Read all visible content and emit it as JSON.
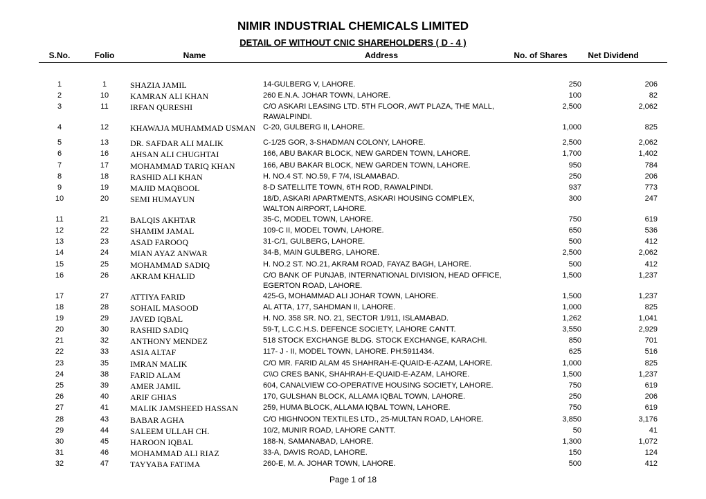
{
  "title": "NIMIR INDUSTRIAL CHEMICALS LIMITED",
  "subtitle": "DETAIL OF WITHOUT CNIC SHAREHOLDERS  ( D - 4 )",
  "columns": {
    "sno": "S.No.",
    "folio": "Folio",
    "name": "Name",
    "address": "Address",
    "shares": "No. of Shares",
    "dividend": "Net Dividend"
  },
  "footer": "Page 1 of 18",
  "rows": [
    {
      "sno": "1",
      "folio": "1",
      "name": "SHAZIA JAMIL",
      "address": "14-GULBERG V, LAHORE.",
      "shares": "250",
      "dividend": "206"
    },
    {
      "sno": "2",
      "folio": "10",
      "name": "KAMRAN ALI KHAN",
      "address": "260 E.N.A. JOHAR TOWN, LAHORE.",
      "shares": "100",
      "dividend": "82"
    },
    {
      "sno": "3",
      "folio": "11",
      "name": "IRFAN QURESHI",
      "address": "C/O ASKARI LEASING LTD. 5TH FLOOR, AWT PLAZA, THE MALL, RAWALPINDI.",
      "shares": "2,500",
      "dividend": "2,062"
    },
    {
      "sno": "4",
      "folio": "12",
      "name": "KHAWAJA MUHAMMAD USMAN",
      "address": "C-20, GULBERG II, LAHORE.",
      "shares": "1,000",
      "dividend": "825",
      "gap_after": true
    },
    {
      "sno": "5",
      "folio": "13",
      "name": "DR. SAFDAR ALI MALIK",
      "address": "C-1/25 GOR, 3-SHADMAN COLONY, LAHORE.",
      "shares": "2,500",
      "dividend": "2,062"
    },
    {
      "sno": "6",
      "folio": "16",
      "name": "AHSAN ALI CHUGHTAI",
      "address": "166, ABU BAKAR BLOCK, NEW GARDEN TOWN, LAHORE.",
      "shares": "1,700",
      "dividend": "1,402"
    },
    {
      "sno": "7",
      "folio": "17",
      "name": "MOHAMMAD TARIQ KHAN",
      "address": "166, ABU BAKAR BLOCK, NEW GARDEN TOWN, LAHORE.",
      "shares": "950",
      "dividend": "784"
    },
    {
      "sno": "8",
      "folio": "18",
      "name": "RASHID ALI KHAN",
      "address": "H. NO.4 ST. NO.59, F 7/4, ISLAMABAD.",
      "shares": "250",
      "dividend": "206"
    },
    {
      "sno": "9",
      "folio": "19",
      "name": "MAJID MAQBOOL",
      "address": "8-D SATELLITE TOWN, 6TH ROD, RAWALPINDI.",
      "shares": "937",
      "dividend": "773"
    },
    {
      "sno": "10",
      "folio": "20",
      "name": "SEMI HUMAYUN",
      "address": "18/D, ASKARI APARTMENTS, ASKARI HOUSING COMPLEX, WALTON AIRPORT, LAHORE.",
      "shares": "300",
      "dividend": "247"
    },
    {
      "sno": "11",
      "folio": "21",
      "name": "BALQIS AKHTAR",
      "address": "35-C, MODEL TOWN, LAHORE.",
      "shares": "750",
      "dividend": "619"
    },
    {
      "sno": "12",
      "folio": "22",
      "name": "SHAMIM JAMAL",
      "address": "109-C II, MODEL TOWN, LAHORE.",
      "shares": "650",
      "dividend": "536"
    },
    {
      "sno": "13",
      "folio": "23",
      "name": "ASAD FAROOQ",
      "address": "31-C/1, GULBERG, LAHORE.",
      "shares": "500",
      "dividend": "412"
    },
    {
      "sno": "14",
      "folio": "24",
      "name": "MIAN AYAZ ANWAR",
      "address": "34-B, MAIN GULBERG, LAHORE.",
      "shares": "2,500",
      "dividend": "2,062"
    },
    {
      "sno": "15",
      "folio": "25",
      "name": "MOHAMMAD SADIQ",
      "address": "H. NO.2 ST. NO.21, AKRAM ROAD, FAYAZ BAGH, LAHORE.",
      "shares": "500",
      "dividend": "412"
    },
    {
      "sno": "16",
      "folio": "26",
      "name": "AKRAM KHALID",
      "address": "C/O BANK OF PUNJAB, INTERNATIONAL DIVISION, HEAD OFFICE, EGERTON ROAD, LAHORE.",
      "shares": "1,500",
      "dividend": "1,237"
    },
    {
      "sno": "17",
      "folio": "27",
      "name": "ATTIYA FARID",
      "address": "425-G, MOHAMMAD ALI JOHAR TOWN, LAHORE.",
      "shares": "1,500",
      "dividend": "1,237"
    },
    {
      "sno": "18",
      "folio": "28",
      "name": "SOHAIL MASOOD",
      "address": "AL ATTA, 177, SAHDMAN II, LAHORE.",
      "shares": "1,000",
      "dividend": "825"
    },
    {
      "sno": "19",
      "folio": "29",
      "name": "JAVED IQBAL",
      "address": "H. NO. 358 SR. NO. 21, SECTOR 1/911, ISLAMABAD.",
      "shares": "1,262",
      "dividend": "1,041"
    },
    {
      "sno": "20",
      "folio": "30",
      "name": "RASHID SADIQ",
      "address": "59-T, L.C.C.H.S. DEFENCE SOCIETY, LAHORE CANTT.",
      "shares": "3,550",
      "dividend": "2,929"
    },
    {
      "sno": "21",
      "folio": "32",
      "name": "ANTHONY MENDEZ",
      "address": "518 STOCK EXCHANGE BLDG. STOCK EXCHANGE, KARACHI.",
      "shares": "850",
      "dividend": "701"
    },
    {
      "sno": "22",
      "folio": "33",
      "name": "ASIA ALTAF",
      "address": "117- J - II, MODEL TOWN, LAHORE. PH:5911434.",
      "shares": "625",
      "dividend": "516"
    },
    {
      "sno": "23",
      "folio": "35",
      "name": "IMRAN MALIK",
      "address": "C/O MR. FARID ALAM 45 SHAHRAH-E-QUAID-E-AZAM, LAHORE.",
      "shares": "1,000",
      "dividend": "825"
    },
    {
      "sno": "24",
      "folio": "38",
      "name": "FARID ALAM",
      "address": "C\\\\O CRES BANK, SHAHRAH-E-QUAID-E-AZAM, LAHORE.",
      "shares": "1,500",
      "dividend": "1,237"
    },
    {
      "sno": "25",
      "folio": "39",
      "name": "AMER JAMIL",
      "address": "604, CANALVIEW CO-OPERATIVE HOUSING SOCIETY, LAHORE.",
      "shares": "750",
      "dividend": "619"
    },
    {
      "sno": "26",
      "folio": "40",
      "name": "ARIF GHIAS",
      "address": "170, GULSHAN BLOCK, ALLAMA IQBAL TOWN, LAHORE.",
      "shares": "250",
      "dividend": "206"
    },
    {
      "sno": "27",
      "folio": "41",
      "name": "MALIK JAMSHEED HASSAN",
      "address": "259, HUMA BLOCK, ALLAMA IQBAL TOWN, LAHORE.",
      "shares": "750",
      "dividend": "619"
    },
    {
      "sno": "28",
      "folio": "43",
      "name": "BABAR AGHA",
      "address": "C/O HIGHNOON TEXTILES LTD., 25-MULTAN ROAD, LAHORE.",
      "shares": "3,850",
      "dividend": "3,176"
    },
    {
      "sno": "29",
      "folio": "44",
      "name": "SALEEM ULLAH CH.",
      "address": "10/2, MUNIR ROAD, LAHORE CANTT.",
      "shares": "50",
      "dividend": "41"
    },
    {
      "sno": "30",
      "folio": "45",
      "name": "HAROON IQBAL",
      "address": "188-N, SAMANABAD, LAHORE.",
      "shares": "1,300",
      "dividend": "1,072"
    },
    {
      "sno": "31",
      "folio": "46",
      "name": "MOHAMMAD ALI RIAZ",
      "address": "33-A, DAVIS ROAD, LAHORE.",
      "shares": "150",
      "dividend": "124"
    },
    {
      "sno": "32",
      "folio": "47",
      "name": "TAYYABA FATIMA",
      "address": "260-E, M. A. JOHAR TOWN, LAHORE.",
      "shares": "500",
      "dividend": "412"
    }
  ]
}
